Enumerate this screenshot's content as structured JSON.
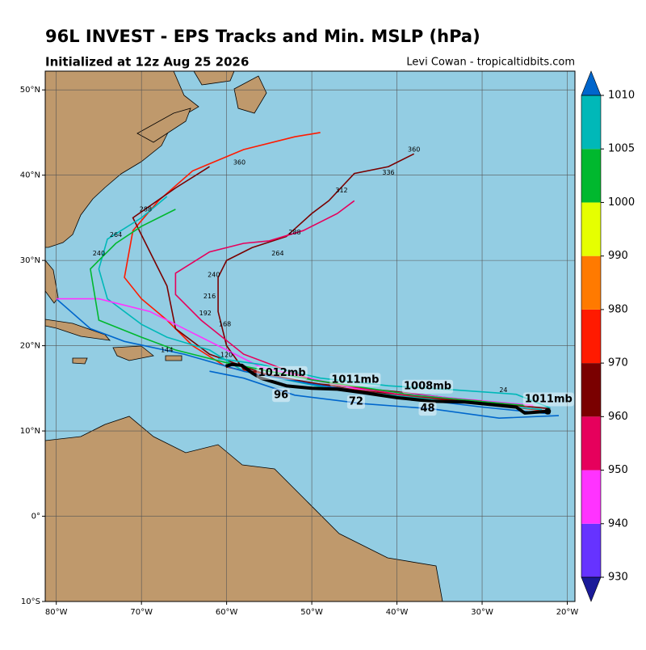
{
  "title": "96L INVEST - EPS Tracks and Min. MSLP (hPa)",
  "subtitle": "Initialized at 12z Aug 25 2026",
  "credit": "Levi Cowan - tropicaltidbits.com",
  "map": {
    "lonlim": [
      -81.3,
      -19.1
    ],
    "latlim": [
      -10,
      52.2
    ],
    "lonticks": [
      {
        "value": -80,
        "label": "80°W"
      },
      {
        "value": -70,
        "label": "70°W"
      },
      {
        "value": -60,
        "label": "60°W"
      },
      {
        "value": -50,
        "label": "50°W"
      },
      {
        "value": -40,
        "label": "40°W"
      },
      {
        "value": -30,
        "label": "30°W"
      },
      {
        "value": -20,
        "label": "20°W"
      }
    ],
    "latticks": [
      {
        "value": 50,
        "label": "50°N"
      },
      {
        "value": 40,
        "label": "40°N"
      },
      {
        "value": 30,
        "label": "30°N"
      },
      {
        "value": 20,
        "label": "20°N"
      },
      {
        "value": 10,
        "label": "10°N"
      },
      {
        "value": 0,
        "label": "0°"
      },
      {
        "value": -10,
        "label": "10°S"
      }
    ],
    "tracks": [
      {
        "color": "#7a0000",
        "lon": [
          -22,
          -30,
          -40,
          -50,
          -58,
          -60,
          -61,
          -61,
          -60,
          -57,
          -53,
          -50,
          -48,
          -45,
          -41,
          -38
        ],
        "lat": [
          12.6,
          13.4,
          14.6,
          15.6,
          17.2,
          20,
          24,
          28,
          30,
          31.5,
          32.8,
          35.5,
          37,
          40.2,
          41,
          42.5
        ]
      },
      {
        "color": "#ff1a00",
        "lon": [
          -22,
          -30,
          -40,
          -50,
          -60,
          -64,
          -67,
          -70,
          -72,
          -71,
          -68,
          -64,
          -58,
          -52,
          -49
        ],
        "lat": [
          12.3,
          13.2,
          14.2,
          15.5,
          17.5,
          20,
          23,
          25.5,
          28,
          33.5,
          37,
          40.5,
          43,
          44.5,
          45
        ]
      },
      {
        "color": "#7a0000",
        "lon": [
          -24,
          -35,
          -45,
          -55,
          -62,
          -66,
          -67,
          -69,
          -71,
          -66,
          -62
        ],
        "lat": [
          12.8,
          13.8,
          14.8,
          16.5,
          19,
          22,
          27,
          31,
          35,
          38.5,
          41
        ]
      },
      {
        "color": "#00b8b8",
        "lon": [
          -23,
          -35,
          -48,
          -58,
          -62,
          -67,
          -70,
          -74,
          -75,
          -74,
          -70,
          -67
        ],
        "lat": [
          12.5,
          13.6,
          15,
          17,
          19.5,
          21,
          22.5,
          25.5,
          29,
          32.5,
          35,
          37.5
        ]
      },
      {
        "color": "#0066cc",
        "lon": [
          -22,
          -30,
          -40,
          -50,
          -58,
          -65,
          -72,
          -76,
          -80
        ],
        "lat": [
          12,
          12.8,
          14,
          15.5,
          17,
          19,
          20.5,
          22,
          25.5
        ]
      },
      {
        "color": "#ff33ff",
        "lon": [
          -24,
          -35,
          -45,
          -56,
          -64,
          -69,
          -75,
          -80
        ],
        "lat": [
          13,
          14,
          15,
          17.5,
          21.5,
          24,
          25.5,
          25.5
        ]
      },
      {
        "color": "#e6005c",
        "lon": [
          -30,
          -40,
          -50,
          -58,
          -63,
          -66,
          -66,
          -62,
          -58,
          -55,
          -51,
          -47,
          -45
        ],
        "lat": [
          13.5,
          14.3,
          16,
          19,
          23,
          26,
          28.5,
          31,
          32,
          32.3,
          33.5,
          35.5,
          37
        ]
      },
      {
        "color": "#00b82e",
        "lon": [
          -25,
          -38,
          -50,
          -60,
          -66,
          -70,
          -75,
          -76,
          -73,
          -70,
          -66
        ],
        "lat": [
          13,
          14.2,
          16,
          18,
          19.5,
          21,
          23,
          29,
          32,
          34,
          36
        ]
      },
      {
        "color": "#0066cc",
        "lon": [
          -21,
          -28,
          -36,
          -44,
          -52,
          -58,
          -62
        ],
        "lat": [
          11.8,
          11.5,
          12.6,
          13.2,
          14.2,
          16.2,
          17
        ]
      },
      {
        "color": "#00b8b8",
        "lon": [
          -22,
          -26,
          -33,
          -41,
          -49,
          -56,
          -61
        ],
        "lat": [
          12.7,
          14.3,
          14.8,
          15.3,
          16.2,
          17.8,
          18.5
        ]
      }
    ],
    "hour_labels": [
      {
        "text": "360",
        "lon": -58.5,
        "lat": 41.5
      },
      {
        "text": "336",
        "lon": -41,
        "lat": 40.3
      },
      {
        "text": "312",
        "lon": -46.5,
        "lat": 38.2
      },
      {
        "text": "288",
        "lon": -52,
        "lat": 33.3
      },
      {
        "text": "264",
        "lon": -54,
        "lat": 30.8
      },
      {
        "text": "240",
        "lon": -61.5,
        "lat": 28.3
      },
      {
        "text": "216",
        "lon": -62,
        "lat": 25.8
      },
      {
        "text": "192",
        "lon": -62.5,
        "lat": 23.8
      },
      {
        "text": "168",
        "lon": -60.2,
        "lat": 22.5
      },
      {
        "text": "144",
        "lon": -67,
        "lat": 19.5
      },
      {
        "text": "120",
        "lon": -60,
        "lat": 18.9
      },
      {
        "text": "24",
        "lon": -27.5,
        "lat": 14.8
      },
      {
        "text": "240",
        "lon": -75,
        "lat": 30.8
      },
      {
        "text": "264",
        "lon": -73,
        "lat": 33
      },
      {
        "text": "288",
        "lon": -69.5,
        "lat": 36
      },
      {
        "text": "360",
        "lon": -38,
        "lat": 43
      }
    ],
    "mean_track": {
      "lon": [
        -22.3,
        -25,
        -26,
        -29,
        -32,
        -36,
        -40,
        -44,
        -47,
        -50,
        -53,
        -56,
        -57,
        -58.2,
        -59.4,
        -60.1
      ],
      "lat": [
        12.3,
        12.1,
        12.8,
        13.1,
        13.4,
        13.5,
        13.9,
        14.5,
        14.9,
        15.0,
        15.3,
        16.2,
        16.8,
        17.7,
        17.8,
        17.6
      ]
    },
    "mean_labels": [
      {
        "text": "1011mb",
        "lon": -22.2,
        "lat": 13.7
      },
      {
        "text": "1008mb",
        "lon": -36.4,
        "lat": 15.2
      },
      {
        "text": "48",
        "lon": -36.4,
        "lat": 12.6
      },
      {
        "text": "1011mb",
        "lon": -44.9,
        "lat": 16.0
      },
      {
        "text": "72",
        "lon": -44.8,
        "lat": 13.4
      },
      {
        "text": "1012mb",
        "lon": -53.5,
        "lat": 16.8
      },
      {
        "text": "96",
        "lon": -53.6,
        "lat": 14.2
      }
    ]
  },
  "colorbar": {
    "ticks": [
      930,
      940,
      950,
      960,
      970,
      980,
      990,
      1000,
      1005,
      1010
    ],
    "colors": [
      "#6633ff",
      "#ff33ff",
      "#e6005c",
      "#7a0000",
      "#ff1a00",
      "#ff7a00",
      "#e6ff00",
      "#00b82e",
      "#00b8b8"
    ],
    "under": "#1a1a99",
    "over": "#0066cc"
  }
}
